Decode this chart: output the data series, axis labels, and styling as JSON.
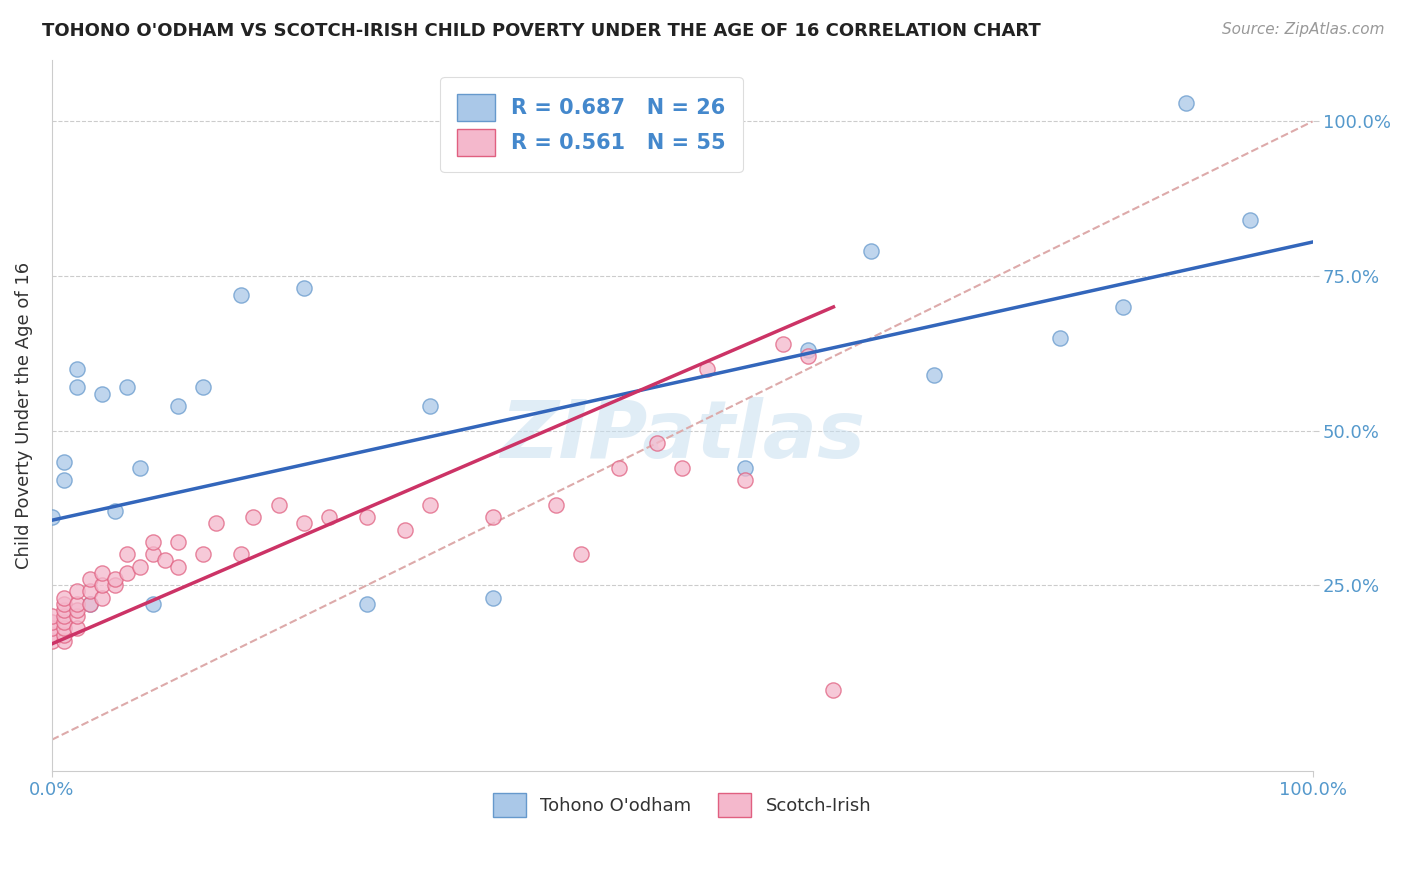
{
  "title": "TOHONO O'ODHAM VS SCOTCH-IRISH CHILD POVERTY UNDER THE AGE OF 16 CORRELATION CHART",
  "source_text": "Source: ZipAtlas.com",
  "ylabel": "Child Poverty Under the Age of 16",
  "xlim": [
    0.0,
    1.0
  ],
  "ylim_min": -0.05,
  "ylim_max": 1.1,
  "ytick_positions": [
    0.25,
    0.5,
    0.75,
    1.0
  ],
  "ytick_labels": [
    "25.0%",
    "50.0%",
    "75.0%",
    "100.0%"
  ],
  "grid_color": "#cccccc",
  "watermark": "ZIPatlas",
  "tohono_fill_color": "#aac8e8",
  "scotch_fill_color": "#f4b8cc",
  "tohono_edge_color": "#6699cc",
  "scotch_edge_color": "#e06080",
  "tohono_line_color": "#3366bb",
  "scotch_line_color": "#cc3366",
  "diag_color": "#ddaaaa",
  "legend_label_1": "R = 0.687   N = 26",
  "legend_label_2": "R = 0.561   N = 55",
  "legend_text_color": "#4488cc",
  "tohono_points_x": [
    0.0,
    0.01,
    0.01,
    0.02,
    0.02,
    0.03,
    0.04,
    0.05,
    0.06,
    0.07,
    0.08,
    0.1,
    0.12,
    0.15,
    0.2,
    0.25,
    0.3,
    0.35,
    0.55,
    0.6,
    0.65,
    0.7,
    0.8,
    0.85,
    0.9,
    0.95
  ],
  "tohono_points_y": [
    0.36,
    0.42,
    0.45,
    0.57,
    0.6,
    0.22,
    0.56,
    0.37,
    0.57,
    0.44,
    0.22,
    0.54,
    0.57,
    0.72,
    0.73,
    0.22,
    0.54,
    0.23,
    0.44,
    0.63,
    0.79,
    0.59,
    0.65,
    0.7,
    1.03,
    0.84
  ],
  "scotch_points_x": [
    0.0,
    0.0,
    0.0,
    0.0,
    0.0,
    0.01,
    0.01,
    0.01,
    0.01,
    0.01,
    0.01,
    0.01,
    0.01,
    0.02,
    0.02,
    0.02,
    0.02,
    0.02,
    0.03,
    0.03,
    0.03,
    0.04,
    0.04,
    0.04,
    0.05,
    0.05,
    0.06,
    0.06,
    0.07,
    0.08,
    0.08,
    0.09,
    0.1,
    0.1,
    0.12,
    0.13,
    0.15,
    0.16,
    0.18,
    0.2,
    0.22,
    0.25,
    0.28,
    0.3,
    0.35,
    0.4,
    0.42,
    0.45,
    0.48,
    0.5,
    0.52,
    0.55,
    0.58,
    0.6,
    0.62
  ],
  "scotch_points_y": [
    0.16,
    0.17,
    0.18,
    0.19,
    0.2,
    0.16,
    0.17,
    0.18,
    0.19,
    0.2,
    0.21,
    0.22,
    0.23,
    0.18,
    0.2,
    0.21,
    0.22,
    0.24,
    0.22,
    0.24,
    0.26,
    0.23,
    0.25,
    0.27,
    0.25,
    0.26,
    0.27,
    0.3,
    0.28,
    0.3,
    0.32,
    0.29,
    0.28,
    0.32,
    0.3,
    0.35,
    0.3,
    0.36,
    0.38,
    0.35,
    0.36,
    0.36,
    0.34,
    0.38,
    0.36,
    0.38,
    0.3,
    0.44,
    0.48,
    0.44,
    0.6,
    0.42,
    0.64,
    0.62,
    0.08
  ],
  "background_color": "#ffffff",
  "figsize": [
    14.06,
    8.92
  ],
  "dpi": 100
}
